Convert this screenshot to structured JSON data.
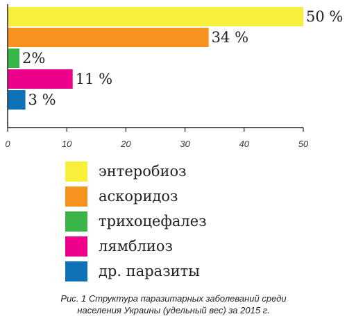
{
  "chart_data": {
    "type": "bar",
    "orientation": "horizontal",
    "categories": [
      "энтеробиоз",
      "аскоридоз",
      "трихоцефалез",
      "лямблиоз",
      "др. паразиты"
    ],
    "values": [
      50,
      34,
      2,
      11,
      3
    ],
    "value_labels": [
      "50 %",
      "34 %",
      "2%",
      "11 %",
      "3 %"
    ],
    "colors": [
      "#f7ef3a",
      "#f6921e",
      "#3ab54a",
      "#ec008c",
      "#0f72b8"
    ],
    "xlim": [
      0,
      50
    ],
    "x_ticks": [
      "0",
      "10",
      "20",
      "30",
      "40",
      "50"
    ],
    "grid": false,
    "legend_position": "bottom"
  },
  "legend": {
    "items": [
      {
        "label": "энтеробиоз",
        "color": "#f7ef3a"
      },
      {
        "label": "аскоридоз",
        "color": "#f6921e"
      },
      {
        "label": "трихоцефалез",
        "color": "#3ab54a"
      },
      {
        "label": "лямблиоз",
        "color": "#ec008c"
      },
      {
        "label": "др. паразиты",
        "color": "#0f72b8"
      }
    ]
  },
  "caption": {
    "line1": "Рис. 1 Структура паразитарных заболеваний среди",
    "line2": "населения Украины (удельный вес) за 2015 г."
  }
}
